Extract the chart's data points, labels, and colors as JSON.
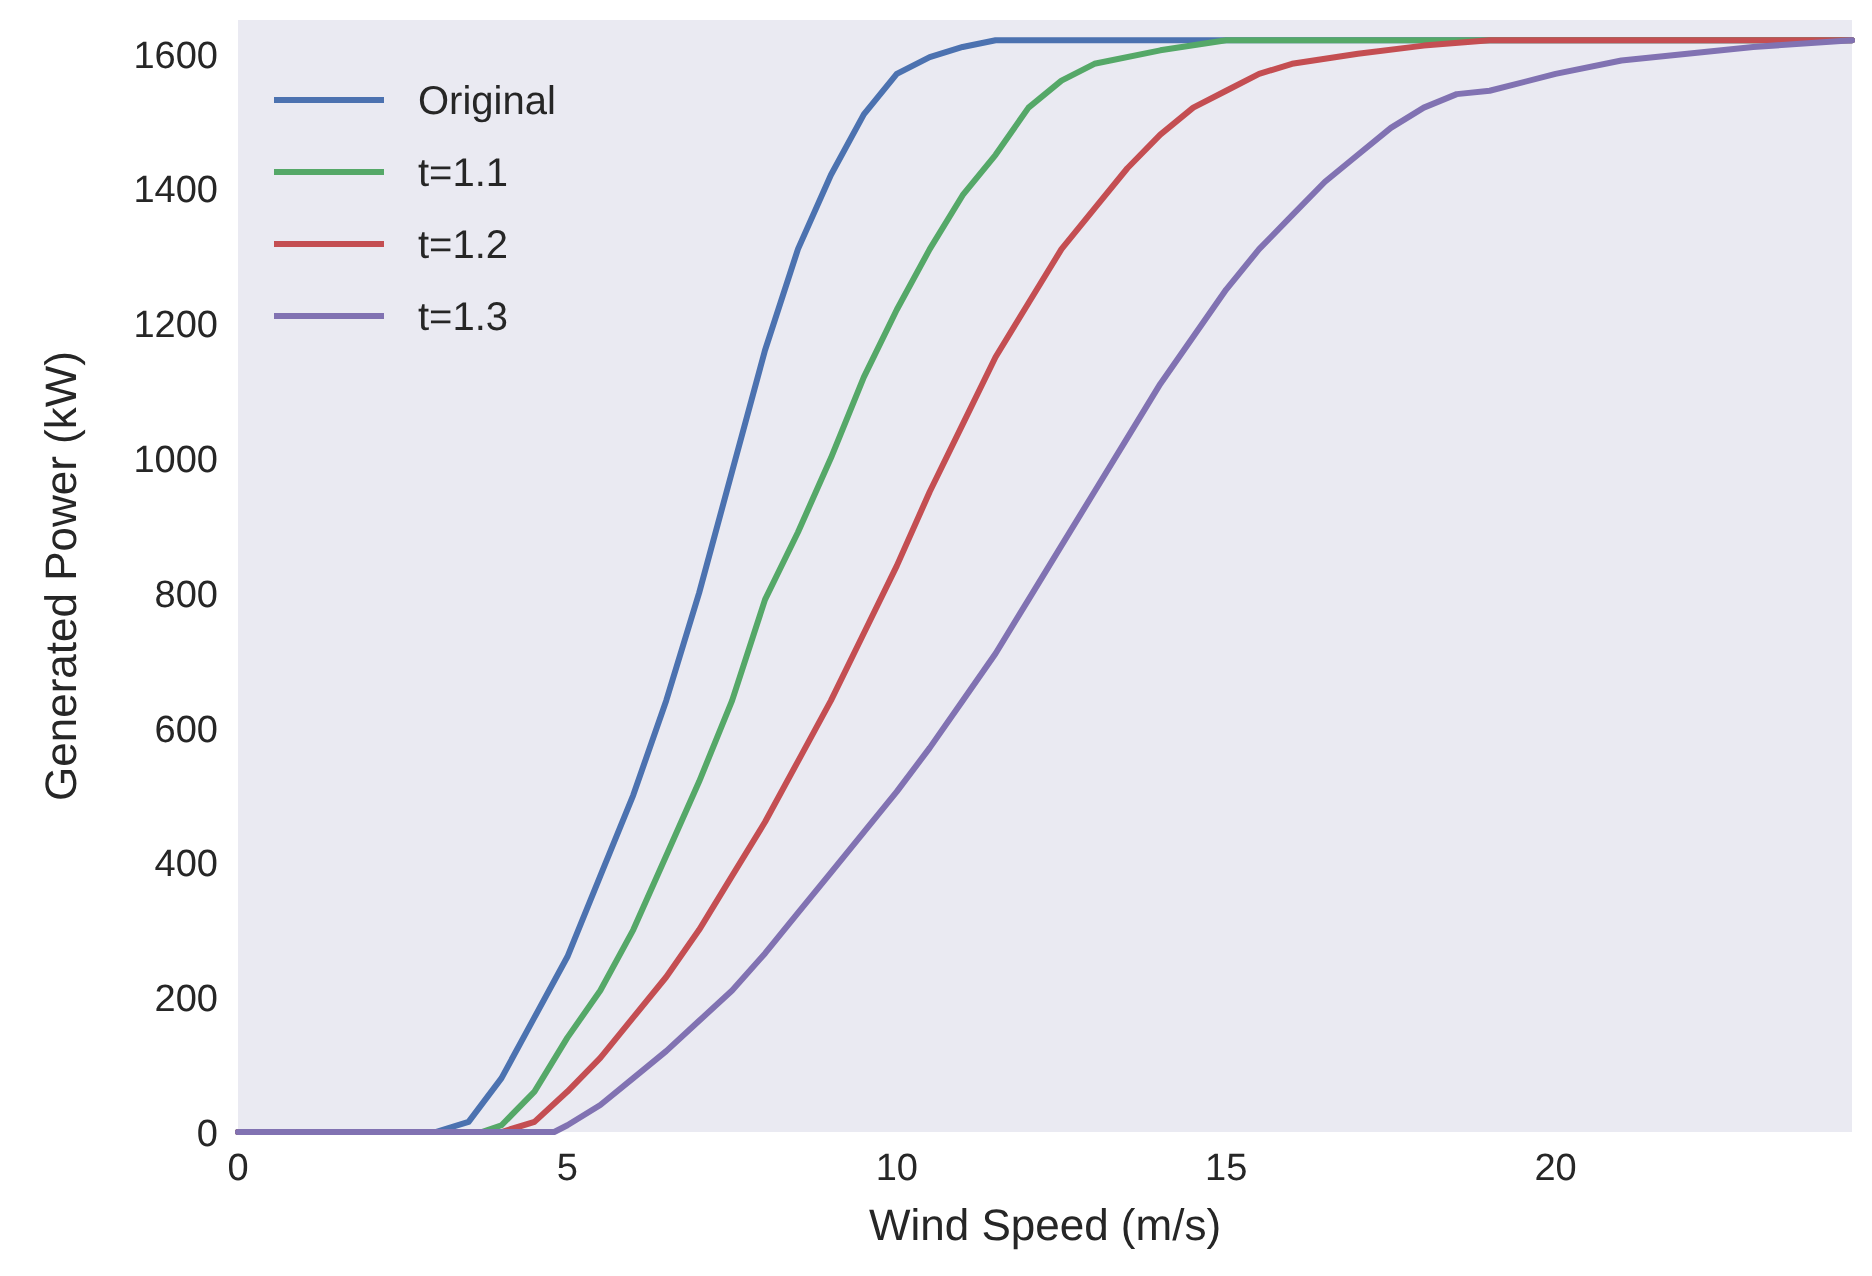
{
  "chart_data": {
    "type": "line",
    "xlabel": "Wind Speed (m/s)",
    "ylabel": "Generated Power (kW)",
    "xlim": [
      0,
      24.5
    ],
    "ylim": [
      0,
      1650
    ],
    "xticks": [
      0,
      5,
      10,
      15,
      20
    ],
    "yticks": [
      0,
      200,
      400,
      600,
      800,
      1000,
      1200,
      1400,
      1600
    ],
    "grid": false,
    "legend": "top left",
    "line_style": "solid",
    "series": [
      {
        "name": "Original",
        "color": "#4c72b0",
        "x": [
          0,
          3,
          3.5,
          4,
          4.5,
          5,
          5.5,
          6,
          6.5,
          7,
          7.5,
          8,
          8.5,
          9,
          9.5,
          10,
          10.5,
          11,
          11.5,
          24.5
        ],
        "values": [
          0,
          0,
          15,
          80,
          170,
          260,
          380,
          500,
          640,
          800,
          980,
          1160,
          1310,
          1420,
          1510,
          1570,
          1595,
          1610,
          1620,
          1620
        ]
      },
      {
        "name": "t=1.1",
        "color": "#55a868",
        "x": [
          0,
          3.7,
          4,
          4.5,
          5,
          5.5,
          6,
          6.5,
          7,
          7.5,
          8,
          8.5,
          9,
          9.5,
          10,
          10.5,
          11,
          11.5,
          12,
          12.5,
          13,
          14,
          15,
          24.5
        ],
        "values": [
          0,
          0,
          10,
          60,
          140,
          210,
          300,
          410,
          520,
          640,
          790,
          890,
          1000,
          1120,
          1220,
          1310,
          1390,
          1450,
          1520,
          1560,
          1585,
          1605,
          1620,
          1620
        ]
      },
      {
        "name": "t=1.2",
        "color": "#c44e52",
        "x": [
          0,
          4,
          4.5,
          5,
          5.5,
          6,
          6.5,
          7,
          7.5,
          8,
          8.5,
          9,
          9.5,
          10,
          10.5,
          11,
          11.5,
          12,
          12.5,
          13,
          13.5,
          14,
          14.5,
          15,
          15.5,
          16,
          17,
          18,
          19,
          24.5
        ],
        "values": [
          0,
          0,
          15,
          60,
          110,
          170,
          230,
          300,
          380,
          460,
          550,
          640,
          740,
          840,
          950,
          1050,
          1150,
          1230,
          1310,
          1370,
          1430,
          1480,
          1520,
          1545,
          1570,
          1585,
          1600,
          1612,
          1620,
          1620
        ]
      },
      {
        "name": "t=1.3",
        "color": "#8172b2",
        "x": [
          0,
          4.8,
          5,
          5.5,
          6,
          6.5,
          7,
          7.5,
          8,
          8.5,
          9,
          9.5,
          10,
          10.5,
          11,
          11.5,
          12,
          12.5,
          13,
          13.5,
          14,
          14.5,
          15,
          15.5,
          16,
          16.5,
          17,
          17.5,
          18,
          18.5,
          19,
          20,
          21,
          22,
          23,
          24.5
        ],
        "values": [
          0,
          0,
          10,
          40,
          80,
          120,
          165,
          210,
          265,
          325,
          385,
          445,
          505,
          570,
          640,
          710,
          790,
          870,
          950,
          1030,
          1110,
          1180,
          1250,
          1310,
          1360,
          1410,
          1450,
          1490,
          1520,
          1540,
          1545,
          1570,
          1590,
          1600,
          1610,
          1620
        ]
      }
    ]
  }
}
